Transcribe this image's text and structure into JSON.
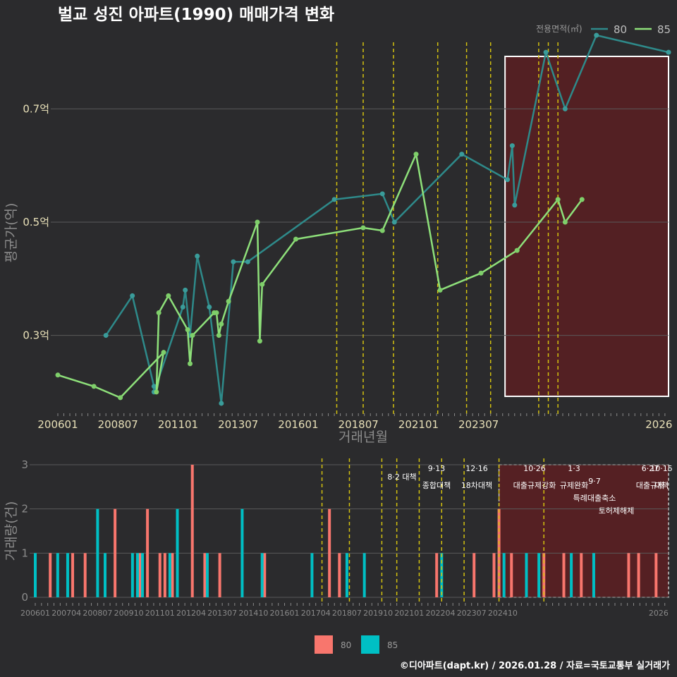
{
  "colors": {
    "background": "#2b2b2d",
    "series80_line": "#2e8a8a",
    "series85_line": "#8ee07a",
    "bar80": "#f8766d",
    "bar85": "#00bfc4",
    "grid": "#5a5a5a",
    "policy_line": "#d4c20f",
    "highlight_fill": "#5a1f22"
  },
  "title": "벌교 성진 아파트(1990) 매매가격 변화",
  "footer": "©디아파트(dapt.kr) / 2026.01.28 / 자료=국토교통부 실거래가",
  "chart_data": [
    {
      "type": "line",
      "title": "벌교 성진 아파트(1990) 매매가격 변화",
      "xlabel": "거래년월",
      "ylabel": "평균가(억)",
      "x_tick_labels": [
        "200601",
        "200807",
        "201101",
        "201307",
        "201601",
        "201807",
        "202101",
        "202307",
        "2026"
      ],
      "y_ticks": [
        0.3,
        0.5,
        0.7
      ],
      "y_tick_labels": [
        "0.3억",
        "0.5억",
        "0.7억"
      ],
      "ylim": [
        0.16,
        0.83
      ],
      "legend": {
        "title": "전용면적(㎡)",
        "position": "top-right"
      },
      "series": [
        {
          "name": "80",
          "points": [
            [
              2008.0,
              0.3
            ],
            [
              2009.1,
              0.37
            ],
            [
              2010.0,
              0.21
            ],
            [
              2010.0,
              0.2
            ],
            [
              2011.2,
              0.35
            ],
            [
              2011.3,
              0.38
            ],
            [
              2011.5,
              0.3
            ],
            [
              2011.8,
              0.44
            ],
            [
              2012.3,
              0.35
            ],
            [
              2012.8,
              0.18
            ],
            [
              2013.3,
              0.43
            ],
            [
              2013.9,
              0.43
            ],
            [
              2017.5,
              0.54
            ],
            [
              2019.5,
              0.55
            ],
            [
              2020.0,
              0.5
            ],
            [
              2022.8,
              0.62
            ],
            [
              2024.7,
              0.575
            ],
            [
              2024.9,
              0.635
            ],
            [
              2025.0,
              0.53
            ],
            [
              2026.3,
              0.8
            ],
            [
              2027.1,
              0.7
            ],
            [
              2028.4,
              0.83
            ],
            [
              2031.4,
              0.8
            ]
          ]
        },
        {
          "name": "85",
          "points": [
            [
              2006.0,
              0.23
            ],
            [
              2007.5,
              0.21
            ],
            [
              2008.6,
              0.19
            ],
            [
              2010.4,
              0.27
            ],
            [
              2010.1,
              0.2
            ],
            [
              2010.2,
              0.34
            ],
            [
              2010.6,
              0.37
            ],
            [
              2011.4,
              0.31
            ],
            [
              2011.5,
              0.25
            ],
            [
              2011.6,
              0.3
            ],
            [
              2012.5,
              0.34
            ],
            [
              2012.6,
              0.34
            ],
            [
              2012.7,
              0.3
            ],
            [
              2012.8,
              0.32
            ],
            [
              2013.1,
              0.36
            ],
            [
              2014.3,
              0.5
            ],
            [
              2014.4,
              0.29
            ],
            [
              2014.5,
              0.39
            ],
            [
              2015.9,
              0.47
            ],
            [
              2018.7,
              0.49
            ],
            [
              2019.5,
              0.485
            ],
            [
              2020.9,
              0.62
            ],
            [
              2021.9,
              0.38
            ],
            [
              2023.6,
              0.41
            ],
            [
              2025.1,
              0.45
            ],
            [
              2026.8,
              0.54
            ],
            [
              2027.1,
              0.5
            ],
            [
              2027.8,
              0.54
            ]
          ]
        }
      ],
      "highlight_region": {
        "x_start": 2024.6,
        "x_end": 2031.4
      },
      "policy_lines": [
        2017.6,
        2018.7,
        2019.96,
        2021.8,
        2023.0,
        2024.0,
        2026.0,
        2026.4,
        2026.8
      ]
    },
    {
      "type": "bar",
      "xlabel": "",
      "ylabel": "거래량(건)",
      "x_tick_labels": [
        "200601",
        "200704",
        "200807",
        "200910",
        "201101",
        "201204",
        "201307",
        "201410",
        "201601",
        "201704",
        "201807",
        "201910",
        "202101",
        "202204",
        "202307",
        "202410",
        "2026"
      ],
      "y_ticks": [
        0,
        1,
        2,
        3
      ],
      "ylim": [
        0,
        3
      ],
      "legend": {
        "entries": [
          "80",
          "85"
        ],
        "position": "bottom-center"
      },
      "series": [
        {
          "name": "80",
          "bars": [
            [
              2006.6,
              1
            ],
            [
              2007.5,
              1
            ],
            [
              2008.0,
              1
            ],
            [
              2009.2,
              2
            ],
            [
              2010.2,
              1
            ],
            [
              2010.5,
              2
            ],
            [
              2011.0,
              1
            ],
            [
              2011.2,
              1
            ],
            [
              2011.5,
              1
            ],
            [
              2012.3,
              3
            ],
            [
              2012.8,
              1
            ],
            [
              2013.4,
              1
            ],
            [
              2015.2,
              1
            ],
            [
              2017.8,
              2
            ],
            [
              2018.2,
              1
            ],
            [
              2022.1,
              1
            ],
            [
              2023.6,
              1
            ],
            [
              2024.4,
              1
            ],
            [
              2024.6,
              2
            ],
            [
              2025.1,
              1
            ],
            [
              2026.4,
              1
            ],
            [
              2027.2,
              1
            ],
            [
              2027.9,
              1
            ],
            [
              2029.8,
              1
            ],
            [
              2030.2,
              1
            ],
            [
              2030.9,
              1
            ]
          ]
        },
        {
          "name": "85",
          "bars": [
            [
              2006.0,
              1
            ],
            [
              2006.9,
              1
            ],
            [
              2007.3,
              1
            ],
            [
              2008.5,
              2
            ],
            [
              2008.8,
              1
            ],
            [
              2009.9,
              1
            ],
            [
              2010.1,
              1
            ],
            [
              2010.3,
              1
            ],
            [
              2011.4,
              1
            ],
            [
              2011.7,
              2
            ],
            [
              2012.9,
              1
            ],
            [
              2014.3,
              2
            ],
            [
              2015.1,
              1
            ],
            [
              2017.1,
              1
            ],
            [
              2018.5,
              1
            ],
            [
              2019.2,
              1
            ],
            [
              2022.3,
              1
            ],
            [
              2024.8,
              1
            ],
            [
              2025.7,
              1
            ],
            [
              2026.2,
              1
            ],
            [
              2027.5,
              1
            ],
            [
              2028.4,
              1
            ]
          ]
        }
      ],
      "highlight_region": {
        "x_start": 2024.6,
        "x_end": 2031.4
      },
      "policy_lines": [
        2017.5,
        2018.6,
        2019.9,
        2020.5,
        2021.4,
        2022.3,
        2023.2,
        2024.6,
        2026.4
      ]
    }
  ],
  "policy_labels": [
    {
      "date": "8·2 대책",
      "text": ""
    },
    {
      "date": "9·13",
      "text": "종합대책"
    },
    {
      "date": "12·16",
      "text": "18차대책"
    },
    {
      "date": "10·26",
      "text": "대출규제강화"
    },
    {
      "date": "1·3",
      "text": "규제완화"
    },
    {
      "date": "9·7",
      "text": "특례대출축소"
    },
    {
      "date": "",
      "text": "토허제해제"
    },
    {
      "date": "6·27",
      "text": "대출규제"
    },
    {
      "date": "10·15",
      "text": "대책"
    }
  ]
}
